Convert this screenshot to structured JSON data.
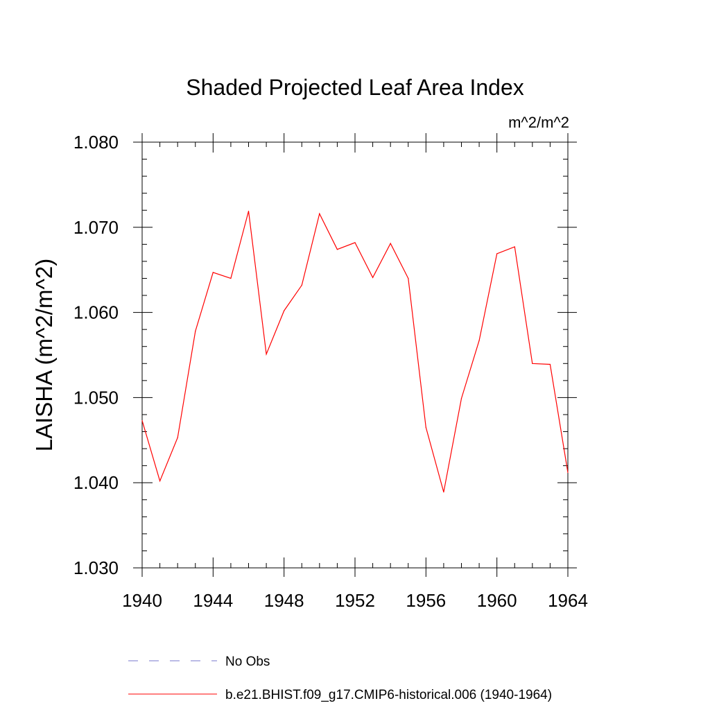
{
  "chart_data": {
    "type": "line",
    "title": "Shaded Projected Leaf Area Index",
    "units_label": "m^2/m^2",
    "ylabel": "LAISHA  (m^2/m^2)",
    "xlabel": "",
    "xlim": [
      1940,
      1964
    ],
    "ylim": [
      1.03,
      1.08
    ],
    "x_ticks": [
      1940,
      1944,
      1948,
      1952,
      1956,
      1960,
      1964
    ],
    "y_ticks": [
      1.03,
      1.04,
      1.05,
      1.06,
      1.07,
      1.08
    ],
    "y_tick_labels": [
      "1.030",
      "1.040",
      "1.050",
      "1.060",
      "1.070",
      "1.080"
    ],
    "grid": false,
    "legend_position": "bottom",
    "series": [
      {
        "name": "b.e21.BHIST.f09_g17.CMIP6-historical.006 (1940-1964)",
        "color": "#ff0000",
        "style": "solid",
        "x": [
          1940,
          1941,
          1942,
          1943,
          1944,
          1945,
          1946,
          1947,
          1948,
          1949,
          1950,
          1951,
          1952,
          1953,
          1954,
          1955,
          1956,
          1957,
          1958,
          1959,
          1960,
          1961,
          1962,
          1963,
          1964
        ],
        "values": [
          1.0473,
          1.0402,
          1.0453,
          1.0578,
          1.0647,
          1.064,
          1.0719,
          1.0551,
          1.0602,
          1.0632,
          1.0716,
          1.0674,
          1.0682,
          1.0641,
          1.0681,
          1.064,
          1.0465,
          1.0389,
          1.0499,
          1.0567,
          1.0669,
          1.0677,
          1.054,
          1.0539,
          1.0412
        ]
      }
    ],
    "legend": [
      {
        "label": "No Obs",
        "color": "#7777cc",
        "style": "dashed"
      },
      {
        "label": "b.e21.BHIST.f09_g17.CMIP6-historical.006 (1940-1964)",
        "color": "#ff0000",
        "style": "solid"
      }
    ]
  }
}
